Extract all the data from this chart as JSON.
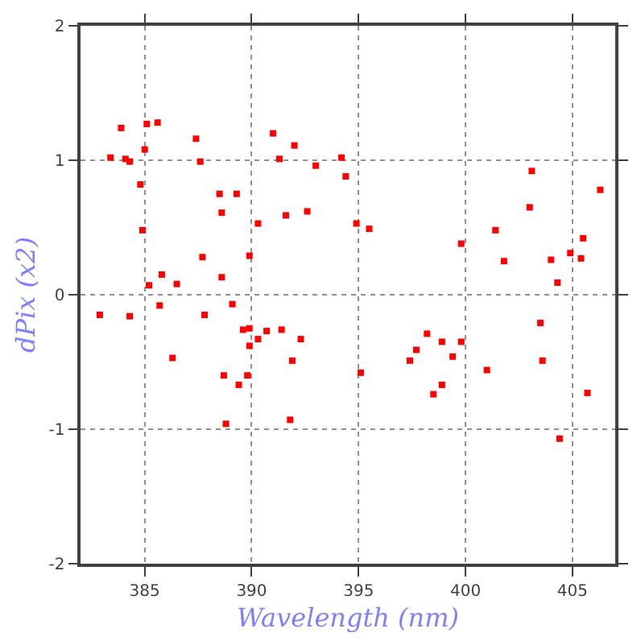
{
  "chart_data": {
    "type": "scatter",
    "xlabel": "Wavelength (nm)",
    "ylabel": "dPix (x2)",
    "xlim": [
      382,
      407
    ],
    "xticks": [
      385,
      390,
      395,
      400,
      405
    ],
    "ylim": [
      -2,
      2
    ],
    "yticks": [
      -2,
      -1,
      0,
      1,
      2
    ],
    "grid": true,
    "marker": "square",
    "series": [
      {
        "color": "#ff0000",
        "x": [
          382.9,
          383.4,
          383.9,
          384.1,
          384.3,
          384.3,
          384.8,
          384.9,
          385.0,
          385.1,
          385.2,
          385.6,
          385.7,
          385.8,
          386.3,
          386.5,
          387.4,
          387.6,
          387.7,
          387.8,
          388.5,
          388.6,
          388.6,
          388.7,
          388.8,
          389.1,
          389.3,
          389.4,
          389.6,
          389.8,
          389.9,
          389.9,
          389.9,
          390.3,
          390.3,
          390.7,
          391.0,
          391.3,
          391.4,
          391.6,
          391.8,
          391.9,
          392.0,
          392.3,
          392.6,
          393.0,
          394.2,
          394.4,
          394.9,
          395.1,
          395.5,
          397.4,
          397.7,
          398.2,
          398.5,
          398.9,
          398.9,
          399.4,
          399.8,
          399.8,
          401.0,
          401.4,
          401.8,
          403.0,
          403.1,
          403.5,
          403.6,
          404.0,
          404.3,
          404.4,
          404.9,
          405.4,
          405.5,
          405.7,
          406.3
        ],
        "values": [
          -0.15,
          1.02,
          1.24,
          1.01,
          0.99,
          -0.16,
          0.82,
          0.48,
          1.08,
          1.27,
          0.07,
          1.28,
          -0.08,
          0.15,
          -0.47,
          0.08,
          1.16,
          0.99,
          0.28,
          -0.15,
          0.75,
          0.61,
          0.13,
          -0.6,
          -0.96,
          -0.07,
          0.75,
          -0.67,
          -0.26,
          -0.6,
          -0.25,
          0.29,
          -0.38,
          -0.33,
          0.53,
          -0.27,
          1.2,
          1.01,
          -0.26,
          0.59,
          -0.93,
          -0.49,
          1.11,
          -0.33,
          0.62,
          0.96,
          1.02,
          0.88,
          0.53,
          -0.58,
          0.49,
          -0.49,
          -0.41,
          -0.29,
          -0.74,
          -0.67,
          -0.35,
          -0.46,
          -0.35,
          0.38,
          -0.56,
          0.48,
          0.25,
          0.65,
          0.92,
          -0.21,
          -0.49,
          0.26,
          0.09,
          -1.07,
          0.31,
          0.27,
          0.42,
          -0.73,
          0.78
        ]
      }
    ]
  }
}
